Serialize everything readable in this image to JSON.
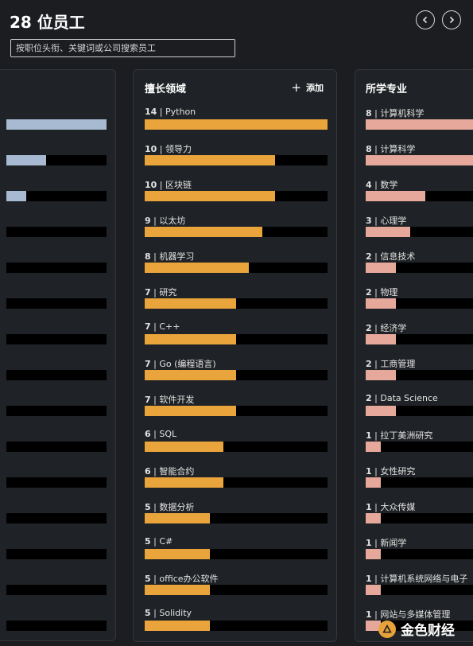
{
  "header": {
    "title": "28 位员工",
    "search_placeholder": "按职位头衔、关键词或公司搜索员工"
  },
  "colors": {
    "background": "#1b1d20",
    "panel": "#1f2226",
    "skill_bar": "#e9a43c",
    "major_bar": "#e6a89a",
    "left_bar": "#a7bad2",
    "track": "#000000"
  },
  "left_panel": {
    "rows": [
      {
        "fill": 1.0
      },
      {
        "fill": 0.4
      },
      {
        "fill": 0.2
      },
      {
        "fill": 0
      },
      {
        "fill": 0
      },
      {
        "fill": 0
      },
      {
        "fill": 0
      },
      {
        "fill": 0
      },
      {
        "fill": 0
      },
      {
        "fill": 0
      },
      {
        "fill": 0
      },
      {
        "fill": 0
      },
      {
        "fill": 0
      },
      {
        "fill": 0
      },
      {
        "fill": 0
      },
      {
        "fill": 0
      }
    ]
  },
  "skills_panel": {
    "title": "擅长领域",
    "add_label": "添加",
    "max": 14,
    "rows": [
      {
        "count": "14",
        "label": "| Python",
        "value": 14
      },
      {
        "count": "10",
        "label": "| 领导力",
        "value": 10
      },
      {
        "count": "10",
        "label": "| 区块链",
        "value": 10
      },
      {
        "count": "9",
        "label": "| 以太坊",
        "value": 9
      },
      {
        "count": "8",
        "label": "| 机器学习",
        "value": 8
      },
      {
        "count": "7",
        "label": "| 研究",
        "value": 7
      },
      {
        "count": "7",
        "label": "| C++",
        "value": 7
      },
      {
        "count": "7",
        "label": "| Go (编程语言)",
        "value": 7
      },
      {
        "count": "7",
        "label": "| 软件开发",
        "value": 7
      },
      {
        "count": "6",
        "label": "| SQL",
        "value": 6
      },
      {
        "count": "6",
        "label": "| 智能合约",
        "value": 6
      },
      {
        "count": "5",
        "label": "| 数据分析",
        "value": 5
      },
      {
        "count": "5",
        "label": "| C#",
        "value": 5
      },
      {
        "count": "5",
        "label": "| office办公软件",
        "value": 5
      },
      {
        "count": "5",
        "label": "| Solidity",
        "value": 5
      }
    ]
  },
  "majors_panel": {
    "title": "所学专业",
    "max": 8,
    "rows": [
      {
        "count": "8",
        "label": "| 计算机科学",
        "value": 8
      },
      {
        "count": "8",
        "label": "| 计算科学",
        "value": 8
      },
      {
        "count": "4",
        "label": "| 数学",
        "value": 4
      },
      {
        "count": "3",
        "label": "| 心理学",
        "value": 3
      },
      {
        "count": "2",
        "label": "| 信息技术",
        "value": 2
      },
      {
        "count": "2",
        "label": "| 物理",
        "value": 2
      },
      {
        "count": "2",
        "label": "| 经济学",
        "value": 2
      },
      {
        "count": "2",
        "label": "| 工商管理",
        "value": 2
      },
      {
        "count": "2",
        "label": "| Data Science",
        "value": 2
      },
      {
        "count": "1",
        "label": "| 拉丁美洲研究",
        "value": 1
      },
      {
        "count": "1",
        "label": "| 女性研究",
        "value": 1
      },
      {
        "count": "1",
        "label": "| 大众传媒",
        "value": 1
      },
      {
        "count": "1",
        "label": "| 新闻学",
        "value": 1
      },
      {
        "count": "1",
        "label": "| 计算机系统网络与电子",
        "value": 1
      },
      {
        "count": "1",
        "label": "| 网站与多媒体管理",
        "value": 1
      }
    ]
  },
  "watermark": {
    "text": "金色财经",
    "icon": "gold-finance-logo-icon"
  }
}
